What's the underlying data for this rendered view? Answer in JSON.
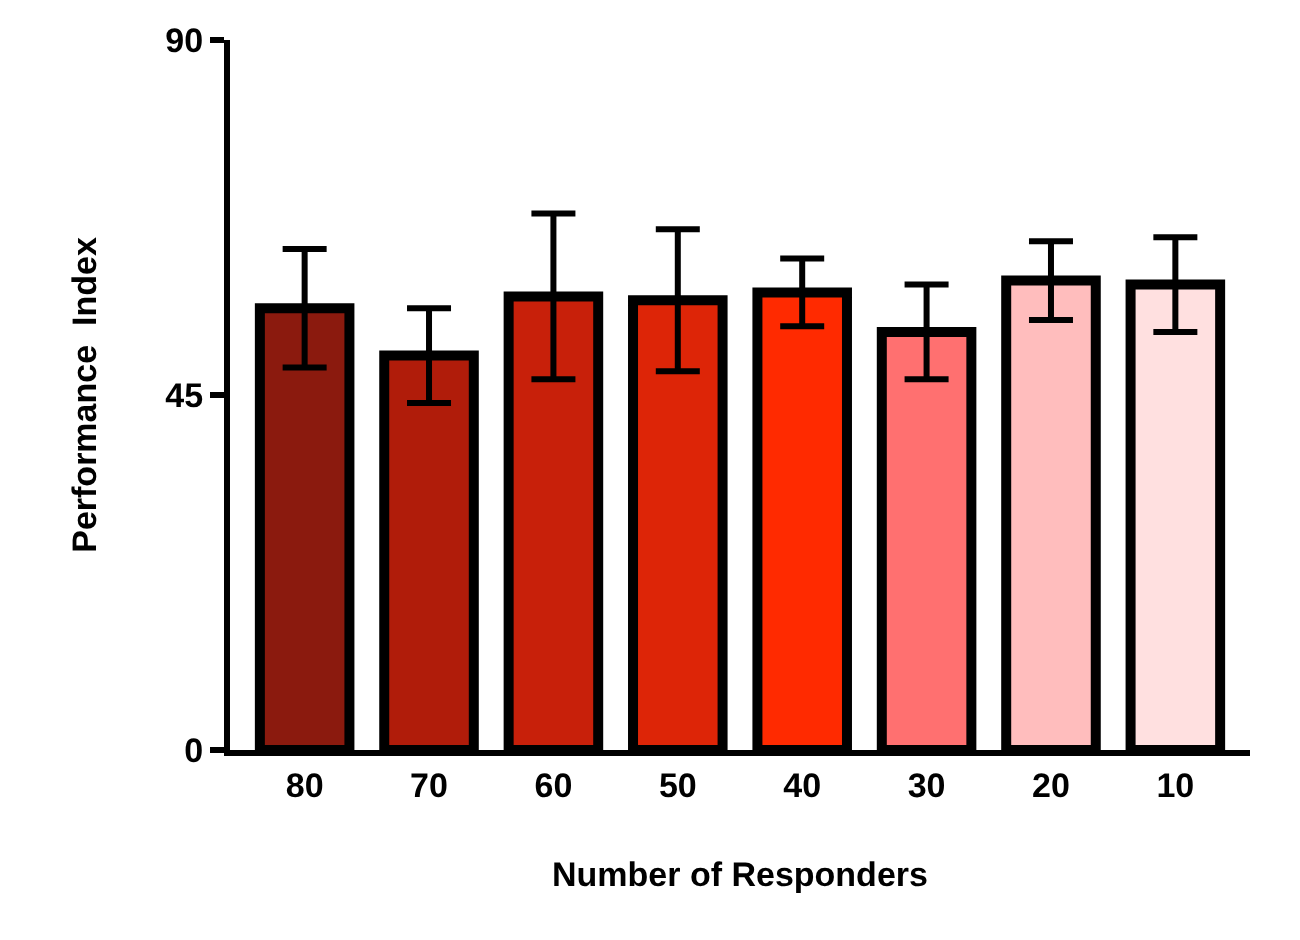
{
  "chart_data": {
    "type": "bar",
    "xlabel": "Number of Responders",
    "ylabel": "Performance  Index",
    "categories": [
      "80",
      "70",
      "60",
      "50",
      "40",
      "30",
      "20",
      "10"
    ],
    "values": [
      56,
      50,
      57.5,
      57,
      58,
      53,
      59.5,
      59
    ],
    "errors": [
      7.5,
      6,
      10.5,
      9,
      4.3,
      6,
      5,
      6
    ],
    "colors": [
      "#8b1a0e",
      "#b01c0a",
      "#c8200a",
      "#dd2507",
      "#ff2a00",
      "#ff7070",
      "#ffbdbd",
      "#ffe0e0"
    ],
    "ylim": [
      0,
      90
    ],
    "yticks": [
      0,
      45,
      90
    ],
    "grid": false
  }
}
